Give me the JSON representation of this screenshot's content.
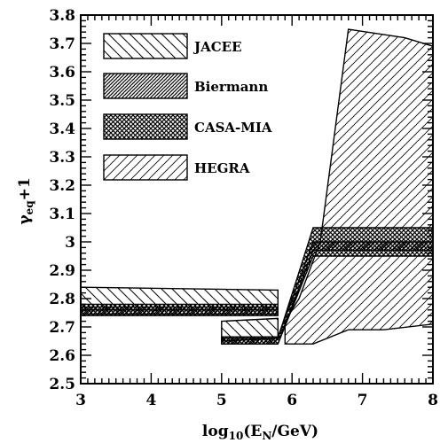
{
  "chart_data": {
    "type": "area",
    "title": "",
    "xlabel": "log10(EN/GeV)",
    "ylabel": "γeq+1",
    "xlim": [
      3,
      8
    ],
    "ylim": [
      2.5,
      3.8
    ],
    "grid": false,
    "legend_position": "top-left",
    "x_ticks": [
      "3",
      "4",
      "5",
      "6",
      "7",
      "8"
    ],
    "y_ticks": [
      "2.5",
      "2.6",
      "2.7",
      "2.8",
      "2.9",
      "3",
      "3.1",
      "3.2",
      "3.3",
      "3.4",
      "3.5",
      "3.6",
      "3.7",
      "3.8"
    ],
    "series": [
      {
        "name": "JACEE",
        "hatch": "backslash-sparse",
        "regions": [
          [
            [
              3.0,
              2.76
            ],
            [
              5.8,
              2.76
            ],
            [
              5.8,
              2.83
            ],
            [
              3.0,
              2.84
            ]
          ],
          [
            [
              5.0,
              2.65
            ],
            [
              5.8,
              2.66
            ],
            [
              5.8,
              2.73
            ],
            [
              5.0,
              2.72
            ]
          ]
        ]
      },
      {
        "name": "Biermann",
        "hatch": "slash-dense",
        "regions": [
          [
            [
              3.0,
              2.745
            ],
            [
              5.8,
              2.745
            ],
            [
              5.8,
              2.77
            ],
            [
              3.0,
              2.77
            ]
          ],
          [
            [
              5.0,
              2.64
            ],
            [
              5.8,
              2.64
            ],
            [
              6.3,
              2.97
            ],
            [
              8.0,
              2.97
            ],
            [
              8.0,
              3.0
            ],
            [
              6.3,
              3.0
            ],
            [
              5.8,
              2.665
            ],
            [
              5.0,
              2.665
            ]
          ]
        ]
      },
      {
        "name": "CASA-MIA",
        "hatch": "cross",
        "regions": [
          [
            [
              3.0,
              2.74
            ],
            [
              5.8,
              2.74
            ],
            [
              5.8,
              2.78
            ],
            [
              3.0,
              2.78
            ]
          ],
          [
            [
              5.0,
              2.64
            ],
            [
              5.8,
              2.64
            ],
            [
              6.3,
              2.95
            ],
            [
              8.0,
              2.95
            ],
            [
              8.0,
              3.05
            ],
            [
              6.3,
              3.05
            ],
            [
              5.8,
              2.66
            ],
            [
              5.0,
              2.66
            ]
          ]
        ]
      },
      {
        "name": "HEGRA",
        "hatch": "slash-sparse",
        "regions": [
          [
            [
              5.9,
              2.64
            ],
            [
              6.3,
              2.64
            ],
            [
              6.8,
              2.69
            ],
            [
              7.3,
              2.69
            ],
            [
              8.0,
              2.71
            ],
            [
              8.0,
              3.69
            ],
            [
              7.6,
              3.72
            ],
            [
              6.8,
              3.75
            ],
            [
              6.4,
              3.0
            ],
            [
              6.1,
              2.8
            ],
            [
              5.9,
              2.72
            ]
          ]
        ]
      }
    ]
  }
}
